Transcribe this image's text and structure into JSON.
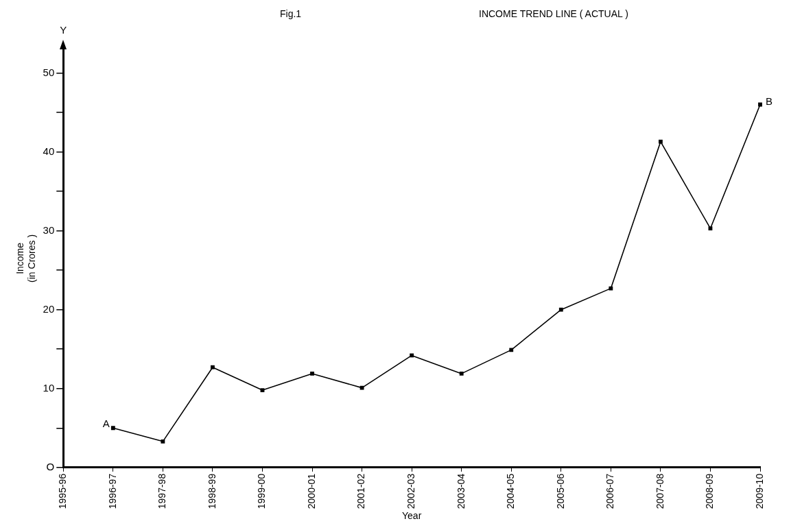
{
  "chart_data": {
    "type": "line",
    "title": "INCOME TREND LINE ( ACTUAL )",
    "subtitle": "Fig.1",
    "xlabel": "Year",
    "ylabel": "Income\n(in Crores )",
    "categories": [
      "1995-96",
      "1996-97",
      "1997-98",
      "1998-99",
      "1999-00",
      "2000-01",
      "2001-02",
      "2002-03",
      "2003-04",
      "2004-05",
      "2005-06",
      "2006-07",
      "2007-08",
      "2008-09",
      "2009-10"
    ],
    "series": [
      {
        "color": "#000000",
        "values": [
          null,
          5,
          3.3,
          12.7,
          9.8,
          11.9,
          10.1,
          14.2,
          11.9,
          14.9,
          20,
          22.7,
          41.3,
          30.3,
          46
        ]
      }
    ],
    "ylim": [
      0,
      53
    ],
    "yticks": [
      {
        "value": 0,
        "label": "O"
      },
      {
        "value": 5,
        "label": null
      },
      10,
      {
        "value": 15,
        "label": null
      },
      20,
      {
        "value": 25,
        "label": null
      },
      30,
      {
        "value": 35,
        "label": null
      },
      40,
      {
        "value": 45,
        "label": null
      },
      50
    ],
    "annotations": [
      "Y",
      {
        "text": "A",
        "x": "1996-97",
        "y": 5
      },
      {
        "text": "B",
        "x": "2009-10",
        "y": 46
      }
    ],
    "grid": false,
    "legend": false,
    "marker": "square",
    "line_style": "solid"
  }
}
